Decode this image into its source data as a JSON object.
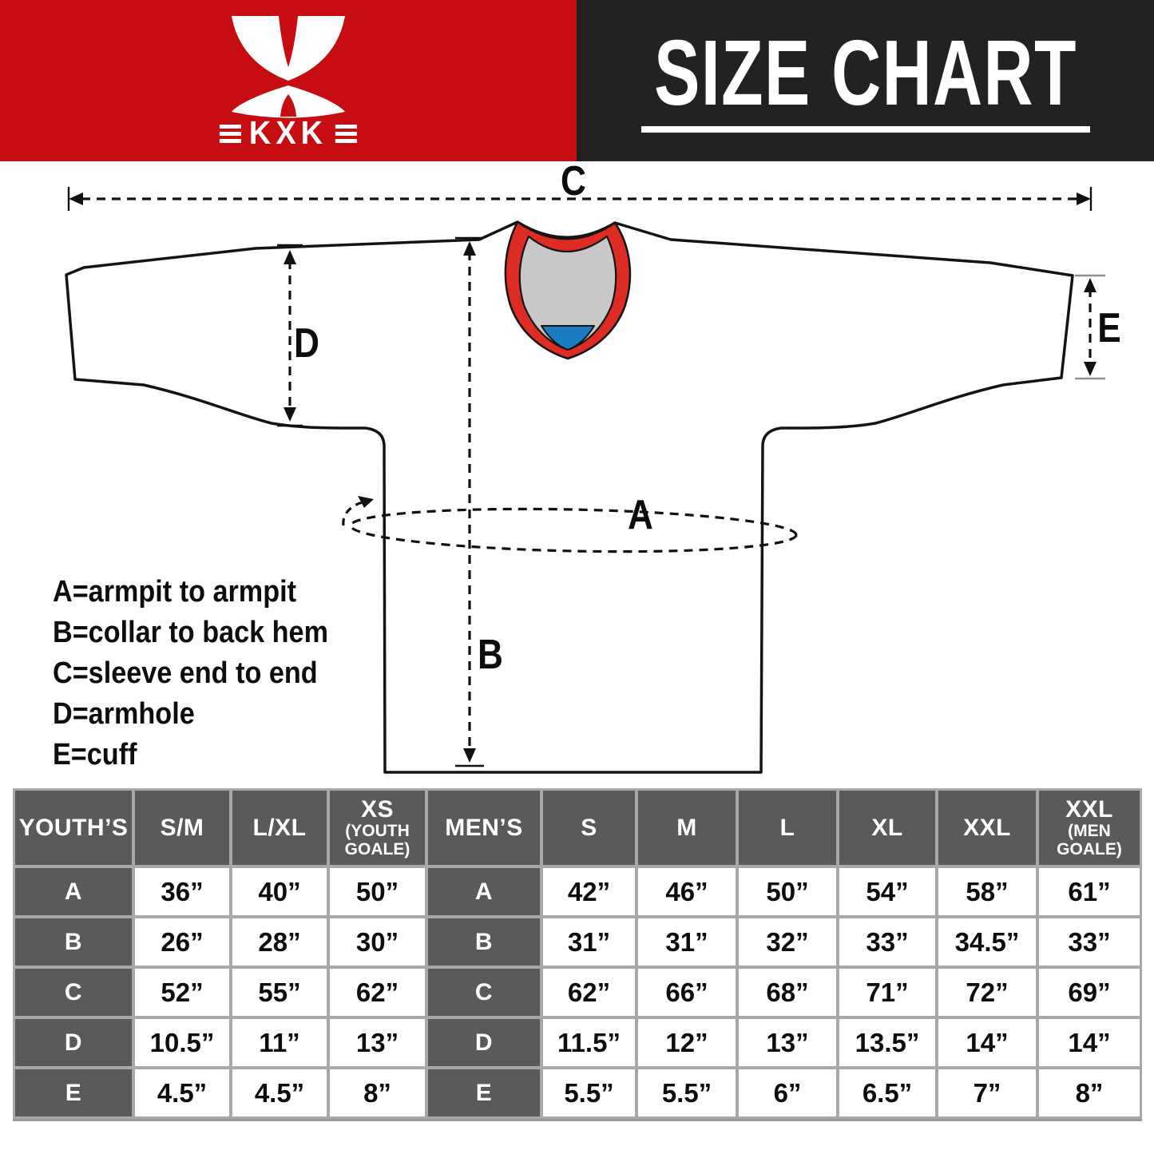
{
  "header": {
    "brand": "KXK",
    "title": "SIZE CHART",
    "colors": {
      "red": "#C60D12",
      "dark": "#242122"
    }
  },
  "diagram": {
    "labels": {
      "a": "A",
      "b": "B",
      "c": "C",
      "d": "D",
      "e": "E"
    },
    "legend": [
      "A=armpit to armpit",
      "B=collar to back hem",
      "C=sleeve end to end",
      "D=armhole",
      "E=cuff"
    ],
    "colors": {
      "trim": "#DD2C23",
      "inner": "#C8C8C8",
      "accent": "#1C7CC2",
      "outline": "#141414"
    }
  },
  "size_table": {
    "measures": [
      "A",
      "B",
      "C",
      "D",
      "E"
    ],
    "youth": {
      "label": "YOUTH’S",
      "sizes": [
        {
          "name": "S/M",
          "sub": ""
        },
        {
          "name": "L/XL",
          "sub": ""
        },
        {
          "name": "XS",
          "sub": "(YOUTH GOALE)"
        }
      ],
      "rows": {
        "A": [
          "36”",
          "40”",
          "50”"
        ],
        "B": [
          "26”",
          "28”",
          "30”"
        ],
        "C": [
          "52”",
          "55”",
          "62”"
        ],
        "D": [
          "10.5”",
          "11”",
          "13”"
        ],
        "E": [
          "4.5”",
          "4.5”",
          "8”"
        ]
      }
    },
    "men": {
      "label": "MEN’S",
      "sizes": [
        {
          "name": "S",
          "sub": ""
        },
        {
          "name": "M",
          "sub": ""
        },
        {
          "name": "L",
          "sub": ""
        },
        {
          "name": "XL",
          "sub": ""
        },
        {
          "name": "XXL",
          "sub": ""
        },
        {
          "name": "XXL",
          "sub": "(MEN GOALE)"
        }
      ],
      "rows": {
        "A": [
          "42”",
          "46”",
          "50”",
          "54”",
          "58”",
          "61”"
        ],
        "B": [
          "31”",
          "31”",
          "32”",
          "33”",
          "34.5”",
          "33”"
        ],
        "C": [
          "62”",
          "66”",
          "68”",
          "71”",
          "72”",
          "69”"
        ],
        "D": [
          "11.5”",
          "12”",
          "13”",
          "13.5”",
          "14”",
          "14”"
        ],
        "E": [
          "5.5”",
          "5.5”",
          "6”",
          "6.5”",
          "7”",
          "8”"
        ]
      }
    }
  }
}
